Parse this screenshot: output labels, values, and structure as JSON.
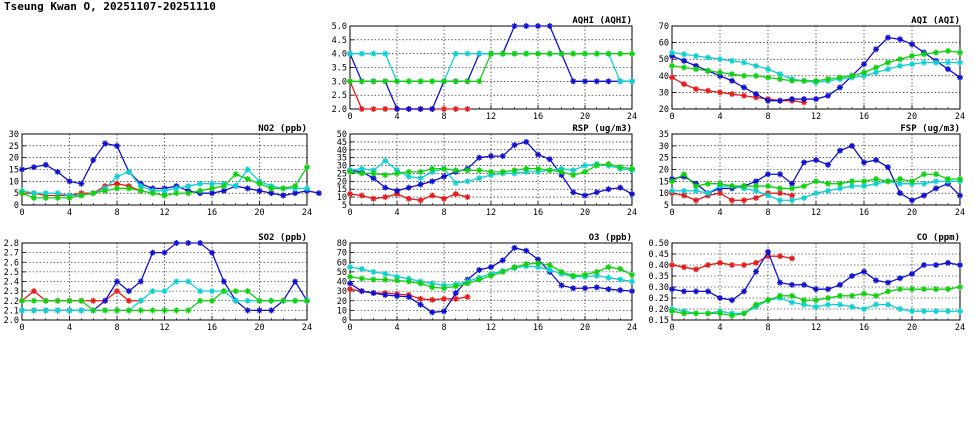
{
  "page": {
    "title": "Tseung Kwan O, 20251107-20251110"
  },
  "colors": {
    "day1": "#e41c1c",
    "day2": "#1010d0",
    "day3": "#10d0d0",
    "day4": "#10d010"
  },
  "chart_data": [
    {
      "id": "aqhi",
      "type": "line",
      "title": "AQHI (AQHI)",
      "xlim": [
        0,
        24
      ],
      "ylim": [
        2.0,
        5.0
      ],
      "xticks": [
        "0",
        "4",
        "8",
        "12",
        "16",
        "20",
        "24"
      ],
      "yticks": [
        "2.0",
        "2.5",
        "3.0",
        "3.5",
        "4.0",
        "4.5",
        "5.0"
      ],
      "grid": true,
      "series": [
        {
          "color": "#e41c1c",
          "values": [
            3,
            2,
            2,
            2,
            2,
            2,
            2,
            2,
            2,
            2,
            2
          ]
        },
        {
          "color": "#1010d0",
          "values": [
            4,
            3,
            3,
            3,
            2,
            2,
            2,
            2,
            3,
            3,
            3,
            4,
            4,
            4,
            5,
            5,
            5,
            5,
            4,
            3,
            3,
            3,
            3,
            3,
            3
          ]
        },
        {
          "color": "#10d0d0",
          "values": [
            4,
            4,
            4,
            4,
            3,
            3,
            3,
            3,
            3,
            4,
            4,
            4,
            4,
            4,
            4,
            4,
            4,
            4,
            4,
            4,
            4,
            4,
            4,
            3,
            3
          ]
        },
        {
          "color": "#10d010",
          "values": [
            3,
            3,
            3,
            3,
            3,
            3,
            3,
            3,
            3,
            3,
            3,
            3,
            4,
            4,
            4,
            4,
            4,
            4,
            4,
            4,
            4,
            4,
            4,
            4,
            4
          ]
        }
      ]
    },
    {
      "id": "aqi",
      "type": "line",
      "title": "AQI (AQI)",
      "xlim": [
        0,
        24
      ],
      "ylim": [
        20,
        70
      ],
      "xticks": [
        "0",
        "4",
        "8",
        "12",
        "16",
        "20",
        "24"
      ],
      "yticks": [
        "20",
        "30",
        "40",
        "50",
        "60",
        "70"
      ],
      "grid": true,
      "series": [
        {
          "color": "#e41c1c",
          "values": [
            39,
            35,
            32,
            31,
            30,
            29,
            28,
            27,
            26,
            25,
            25,
            24
          ]
        },
        {
          "color": "#1010d0",
          "values": [
            52,
            49,
            46,
            43,
            40,
            37,
            33,
            29,
            25,
            25,
            26,
            26,
            26,
            28,
            33,
            40,
            47,
            56,
            63,
            62,
            59,
            54,
            49,
            44,
            39
          ]
        },
        {
          "color": "#10d0d0",
          "values": [
            54,
            53,
            52,
            51,
            50,
            49,
            48,
            46,
            44,
            41,
            38,
            37,
            36,
            37,
            38,
            39,
            40,
            42,
            44,
            46,
            47,
            48,
            48,
            48,
            48
          ]
        },
        {
          "color": "#10d010",
          "values": [
            46,
            45,
            44,
            43,
            42,
            41,
            40,
            40,
            39,
            38,
            37,
            37,
            37,
            38,
            39,
            40,
            42,
            45,
            48,
            50,
            52,
            53,
            54,
            55,
            54
          ]
        }
      ]
    },
    {
      "id": "no2",
      "type": "line",
      "title": "NO2 (ppb)",
      "xlim": [
        0,
        24
      ],
      "ylim": [
        0,
        30
      ],
      "xticks": [
        "0",
        "4",
        "8",
        "12",
        "16",
        "20",
        "24"
      ],
      "yticks": [
        "0",
        "5",
        "10",
        "15",
        "20",
        "25",
        "30"
      ],
      "grid": true,
      "series": [
        {
          "color": "#e41c1c",
          "values": [
            5,
            5,
            4,
            4,
            4,
            5,
            5,
            8,
            9,
            8,
            6
          ]
        },
        {
          "color": "#1010d0",
          "values": [
            15,
            16,
            17,
            14,
            10,
            9,
            19,
            26,
            25,
            14,
            9,
            7,
            7,
            8,
            6,
            5,
            5,
            6,
            8,
            7,
            6,
            5,
            4,
            5,
            6,
            5
          ]
        },
        {
          "color": "#10d0d0",
          "values": [
            6,
            5,
            5,
            5,
            4,
            4,
            5,
            7,
            12,
            14,
            8,
            6,
            6,
            7,
            8,
            9,
            9,
            9,
            8,
            15,
            10,
            8,
            7,
            7,
            7
          ]
        },
        {
          "color": "#10d010",
          "values": [
            5,
            3,
            3,
            3,
            3,
            4,
            5,
            6,
            7,
            7,
            6,
            5,
            4,
            5,
            5,
            6,
            7,
            8,
            13,
            11,
            9,
            7,
            7,
            8,
            16
          ]
        }
      ]
    },
    {
      "id": "rsp",
      "type": "line",
      "title": "RSP (ug/m3)",
      "xlim": [
        0,
        24
      ],
      "ylim": [
        5,
        50
      ],
      "xticks": [
        "0",
        "4",
        "8",
        "12",
        "16",
        "20",
        "24"
      ],
      "yticks": [
        "5",
        "10",
        "15",
        "20",
        "25",
        "30",
        "35",
        "40",
        "45",
        "50"
      ],
      "grid": true,
      "series": [
        {
          "color": "#e41c1c",
          "values": [
            12,
            11,
            9,
            10,
            12,
            9,
            8,
            11,
            9,
            12,
            10
          ]
        },
        {
          "color": "#1010d0",
          "values": [
            27,
            26,
            22,
            16,
            14,
            16,
            18,
            20,
            23,
            26,
            28,
            35,
            36,
            36,
            43,
            45,
            37,
            34,
            24,
            13,
            11,
            13,
            15,
            16,
            12
          ]
        },
        {
          "color": "#10d0d0",
          "values": [
            27,
            28,
            27,
            33,
            27,
            23,
            22,
            26,
            28,
            19,
            20,
            22,
            24,
            25,
            25,
            26,
            26,
            27,
            28,
            27,
            30,
            31,
            30,
            28,
            27
          ]
        },
        {
          "color": "#10d010",
          "values": [
            26,
            25,
            25,
            24,
            25,
            26,
            26,
            28,
            28,
            27,
            27,
            27,
            26,
            26,
            27,
            28,
            28,
            27,
            26,
            24,
            26,
            30,
            31,
            29,
            28
          ]
        }
      ]
    },
    {
      "id": "fsp",
      "type": "line",
      "title": "FSP (ug/m3)",
      "xlim": [
        0,
        24
      ],
      "ylim": [
        5,
        35
      ],
      "xticks": [
        "0",
        "4",
        "8",
        "12",
        "16",
        "20",
        "24"
      ],
      "yticks": [
        "5",
        "10",
        "15",
        "20",
        "25",
        "30",
        "35"
      ],
      "grid": true,
      "series": [
        {
          "color": "#e41c1c",
          "values": [
            10,
            9,
            7,
            9,
            10,
            7,
            7,
            8,
            10,
            10,
            9
          ]
        },
        {
          "color": "#1010d0",
          "values": [
            16,
            17,
            14,
            10,
            12,
            12,
            13,
            15,
            18,
            18,
            14,
            23,
            24,
            22,
            28,
            30,
            23,
            24,
            21,
            10,
            7,
            9,
            12,
            14,
            9
          ]
        },
        {
          "color": "#10d0d0",
          "values": [
            11,
            11,
            11,
            10,
            13,
            13,
            12,
            11,
            9,
            7,
            7,
            8,
            10,
            11,
            12,
            13,
            13,
            14,
            15,
            14,
            14,
            14,
            15,
            15,
            15
          ]
        },
        {
          "color": "#10d010",
          "values": [
            15,
            18,
            13,
            14,
            14,
            13,
            13,
            13,
            13,
            12,
            12,
            13,
            15,
            14,
            14,
            15,
            15,
            16,
            15,
            16,
            15,
            18,
            18,
            16,
            16
          ]
        }
      ]
    },
    {
      "id": "so2",
      "type": "line",
      "title": "SO2 (ppb)",
      "xlim": [
        0,
        24
      ],
      "ylim": [
        2.0,
        2.8
      ],
      "xticks": [
        "0",
        "4",
        "8",
        "12",
        "16",
        "20",
        "24"
      ],
      "yticks": [
        "2.0",
        "2.1",
        "2.2",
        "2.3",
        "2.4",
        "2.5",
        "2.6",
        "2.7",
        "2.8"
      ],
      "grid": true,
      "series": [
        {
          "color": "#e41c1c",
          "values": [
            2.2,
            2.3,
            2.2,
            2.2,
            2.2,
            2.2,
            2.2,
            2.2,
            2.3,
            2.2,
            2.2
          ]
        },
        {
          "color": "#1010d0",
          "values": [
            2.1,
            2.1,
            2.1,
            2.1,
            2.1,
            2.1,
            2.1,
            2.2,
            2.4,
            2.3,
            2.4,
            2.7,
            2.7,
            2.8,
            2.8,
            2.8,
            2.7,
            2.4,
            2.2,
            2.1,
            2.1,
            2.1,
            2.2,
            2.4,
            2.2
          ]
        },
        {
          "color": "#10d0d0",
          "values": [
            2.1,
            2.1,
            2.1,
            2.1,
            2.1,
            2.1,
            2.1,
            2.1,
            2.1,
            2.1,
            2.2,
            2.3,
            2.3,
            2.4,
            2.4,
            2.3,
            2.3,
            2.3,
            2.2,
            2.2,
            2.2,
            2.2,
            2.2,
            2.2,
            2.2
          ]
        },
        {
          "color": "#10d010",
          "values": [
            2.2,
            2.2,
            2.2,
            2.2,
            2.2,
            2.2,
            2.1,
            2.1,
            2.1,
            2.1,
            2.1,
            2.1,
            2.1,
            2.1,
            2.1,
            2.2,
            2.2,
            2.3,
            2.3,
            2.3,
            2.2,
            2.2,
            2.2,
            2.2,
            2.2
          ]
        }
      ]
    },
    {
      "id": "o3",
      "type": "line",
      "title": "O3 (ppb)",
      "xlim": [
        0,
        24
      ],
      "ylim": [
        0,
        80
      ],
      "xticks": [
        "0",
        "4",
        "8",
        "12",
        "16",
        "20",
        "24"
      ],
      "yticks": [
        "0",
        "10",
        "20",
        "30",
        "40",
        "50",
        "60",
        "70",
        "80"
      ],
      "grid": true,
      "series": [
        {
          "color": "#e41c1c",
          "values": [
            32,
            30,
            28,
            28,
            27,
            26,
            22,
            21,
            22,
            22,
            24
          ]
        },
        {
          "color": "#1010d0",
          "values": [
            38,
            30,
            28,
            26,
            25,
            24,
            16,
            8,
            9,
            28,
            42,
            52,
            55,
            62,
            75,
            72,
            63,
            50,
            36,
            33,
            33,
            34,
            32,
            31,
            30
          ]
        },
        {
          "color": "#10d0d0",
          "values": [
            55,
            53,
            50,
            48,
            45,
            43,
            40,
            38,
            36,
            37,
            40,
            44,
            48,
            51,
            54,
            56,
            55,
            52,
            48,
            45,
            45,
            46,
            44,
            42,
            40
          ]
        },
        {
          "color": "#10d010",
          "values": [
            45,
            43,
            42,
            42,
            41,
            40,
            38,
            34,
            33,
            35,
            38,
            42,
            46,
            50,
            55,
            58,
            59,
            57,
            50,
            46,
            47,
            50,
            55,
            53,
            47
          ]
        }
      ]
    },
    {
      "id": "co",
      "type": "line",
      "title": "CO (ppm)",
      "xlim": [
        0,
        24
      ],
      "ylim": [
        0.15,
        0.5
      ],
      "xticks": [
        "0",
        "4",
        "8",
        "12",
        "16",
        "20",
        "24"
      ],
      "yticks": [
        "0.15",
        "0.20",
        "0.25",
        "0.30",
        "0.35",
        "0.40",
        "0.45",
        "0.50"
      ],
      "grid": true,
      "series": [
        {
          "color": "#e41c1c",
          "values": [
            0.4,
            0.39,
            0.38,
            0.4,
            0.41,
            0.4,
            0.4,
            0.41,
            0.44,
            0.44,
            0.43
          ]
        },
        {
          "color": "#1010d0",
          "values": [
            0.29,
            0.28,
            0.28,
            0.28,
            0.25,
            0.24,
            0.28,
            0.37,
            0.46,
            0.32,
            0.31,
            0.31,
            0.29,
            0.29,
            0.31,
            0.35,
            0.37,
            0.33,
            0.32,
            0.34,
            0.36,
            0.4,
            0.4,
            0.41,
            0.4
          ]
        },
        {
          "color": "#10d0d0",
          "values": [
            0.2,
            0.19,
            0.18,
            0.18,
            0.19,
            0.18,
            0.18,
            0.21,
            0.24,
            0.25,
            0.23,
            0.22,
            0.21,
            0.22,
            0.22,
            0.21,
            0.2,
            0.22,
            0.22,
            0.2,
            0.19,
            0.19,
            0.19,
            0.19,
            0.19
          ]
        },
        {
          "color": "#10d010",
          "values": [
            0.19,
            0.18,
            0.18,
            0.18,
            0.18,
            0.17,
            0.18,
            0.22,
            0.24,
            0.26,
            0.26,
            0.24,
            0.24,
            0.25,
            0.26,
            0.26,
            0.27,
            0.26,
            0.28,
            0.29,
            0.29,
            0.29,
            0.29,
            0.29,
            0.3
          ]
        }
      ]
    }
  ]
}
